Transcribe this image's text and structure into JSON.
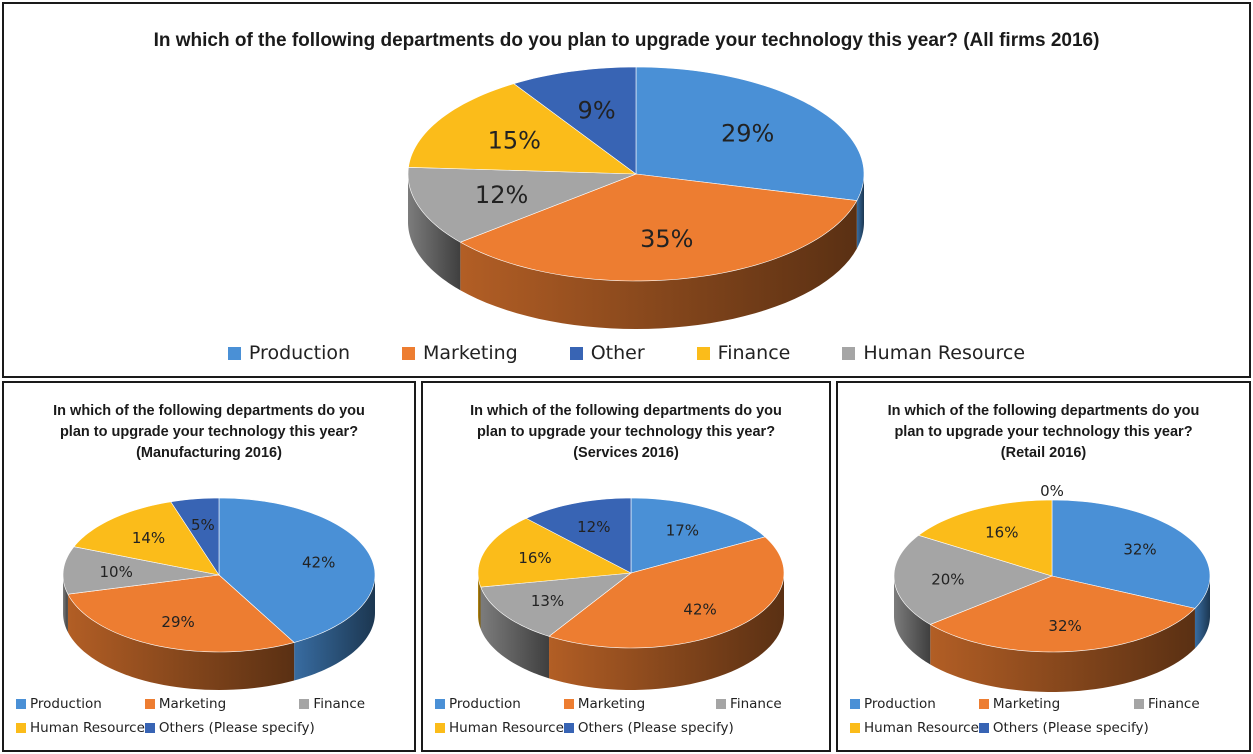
{
  "colors": {
    "production": "#4a90d6",
    "marketing": "#ed7d31",
    "finance_main": "#fbbc1a",
    "human_resource_main": "#a5a5a5",
    "other_main": "#3864b4",
    "finance_small": "#a5a5a5",
    "human_resource_small": "#fbbc1a",
    "others_small": "#3864b4"
  },
  "chart_data": [
    {
      "type": "pie",
      "title": "In which of the following departments do you plan to upgrade your technology this year? (All firms 2016)",
      "labels": [
        "Production",
        "Marketing",
        "Human Resource",
        "Finance",
        "Other"
      ],
      "values": [
        29,
        35,
        12,
        15,
        9
      ],
      "data_labels": [
        "29%",
        "35%",
        "12%",
        "15%",
        "9%"
      ],
      "legend": [
        "Production",
        "Marketing",
        "Other",
        "Finance",
        "Human Resource"
      ],
      "legend_position": "bottom"
    },
    {
      "type": "pie",
      "title": "In which of the following departments do you plan to upgrade your technology this year? (Manufacturing 2016)",
      "labels": [
        "Production",
        "Marketing",
        "Finance",
        "Human Resource",
        "Others (Please specify)"
      ],
      "values": [
        42,
        29,
        10,
        14,
        5
      ],
      "data_labels": [
        "42%",
        "29%",
        "10%",
        "14%",
        "5%"
      ],
      "legend": [
        "Production",
        "Marketing",
        "Finance",
        "Human Resource",
        "Others (Please specify)"
      ],
      "legend_position": "bottom"
    },
    {
      "type": "pie",
      "title": "In which of the following departments do you plan to upgrade your technology this year?(Services 2016)",
      "labels": [
        "Production",
        "Marketing",
        "Finance",
        "Human Resource",
        "Others (Please specify)"
      ],
      "values": [
        17,
        42,
        13,
        16,
        12
      ],
      "data_labels": [
        "17%",
        "42%",
        "13%",
        "16%",
        "12%"
      ],
      "legend": [
        "Production",
        "Marketing",
        "Finance",
        "Human Resource",
        "Others (Please specify)"
      ],
      "legend_position": "bottom"
    },
    {
      "type": "pie",
      "title": "In which of the following departments do you plan to upgrade your technology this year?(Retail 2016)",
      "labels": [
        "Production",
        "Marketing",
        "Finance",
        "Human Resource",
        "Others (Please specify)"
      ],
      "values": [
        32,
        32,
        20,
        16,
        0
      ],
      "data_labels": [
        "32%",
        "32%",
        "20%",
        "16%",
        "0%"
      ],
      "legend": [
        "Production",
        "Marketing",
        "Finance",
        "Human Resource",
        "Others (Please specify)"
      ],
      "legend_position": "bottom"
    }
  ]
}
